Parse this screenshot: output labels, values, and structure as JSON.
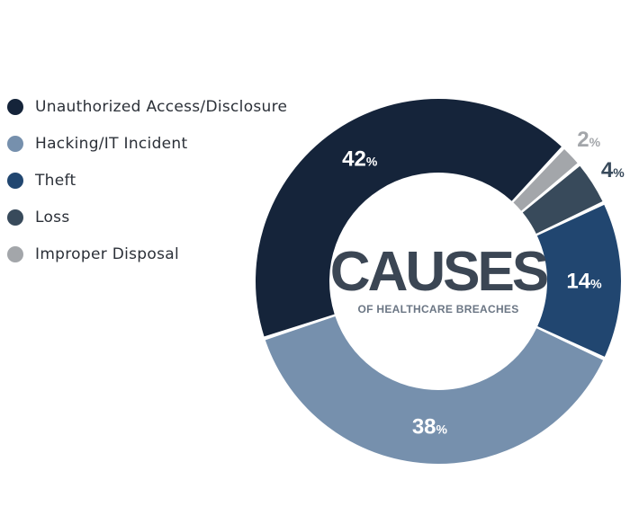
{
  "chart_data": {
    "type": "pie",
    "title": "CAUSES",
    "subtitle": "OF HEALTHCARE BREACHES",
    "legend_position": "left",
    "categories": [
      "Unauthorized Access/Disclosure",
      "Hacking/IT Incident",
      "Theft",
      "Loss",
      "Improper Disposal"
    ],
    "values": [
      42,
      38,
      14,
      4,
      2
    ],
    "value_unit": "%",
    "colors": [
      "#15243a",
      "#7690ad",
      "#214670",
      "#384a5b",
      "#a3a6aa"
    ],
    "segment_order": [
      1,
      0,
      4,
      3,
      2
    ]
  }
}
